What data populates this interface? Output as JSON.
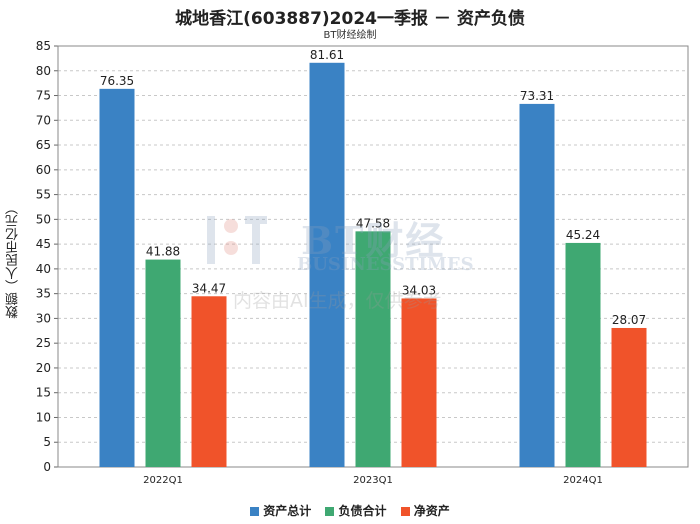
{
  "title": "城地香江(603887)2024一季报 － 资产负债",
  "subtitle": "BT财经绘制",
  "colors": {
    "total_assets": "#3a82c4",
    "total_liabilities": "#3fa872",
    "net_assets": "#f0532a"
  },
  "watermark": {
    "brand": "BT财经",
    "english": "BUSINESSTIMES",
    "note": "内容由AI生成，仅供参考"
  },
  "chart_data": {
    "type": "bar",
    "title": "城地香江(603887)2024一季报 － 资产负债",
    "subtitle": "BT财经绘制",
    "ylabel": "数额（人民币亿元）",
    "xlabel": "",
    "categories": [
      "2022Q1",
      "2023Q1",
      "2024Q1"
    ],
    "ylim": [
      0,
      85
    ],
    "yticks": [
      0,
      5,
      10,
      15,
      20,
      25,
      30,
      35,
      40,
      45,
      50,
      55,
      60,
      65,
      70,
      75,
      80,
      85
    ],
    "grid": true,
    "legend_position": "bottom",
    "series": [
      {
        "name": "资产总计",
        "color": "#3a82c4",
        "values": [
          76.35,
          81.61,
          73.31
        ]
      },
      {
        "name": "负债合计",
        "color": "#3fa872",
        "values": [
          41.88,
          47.58,
          45.24
        ]
      },
      {
        "name": "净资产",
        "color": "#f0532a",
        "values": [
          34.47,
          34.03,
          28.07
        ]
      }
    ]
  }
}
